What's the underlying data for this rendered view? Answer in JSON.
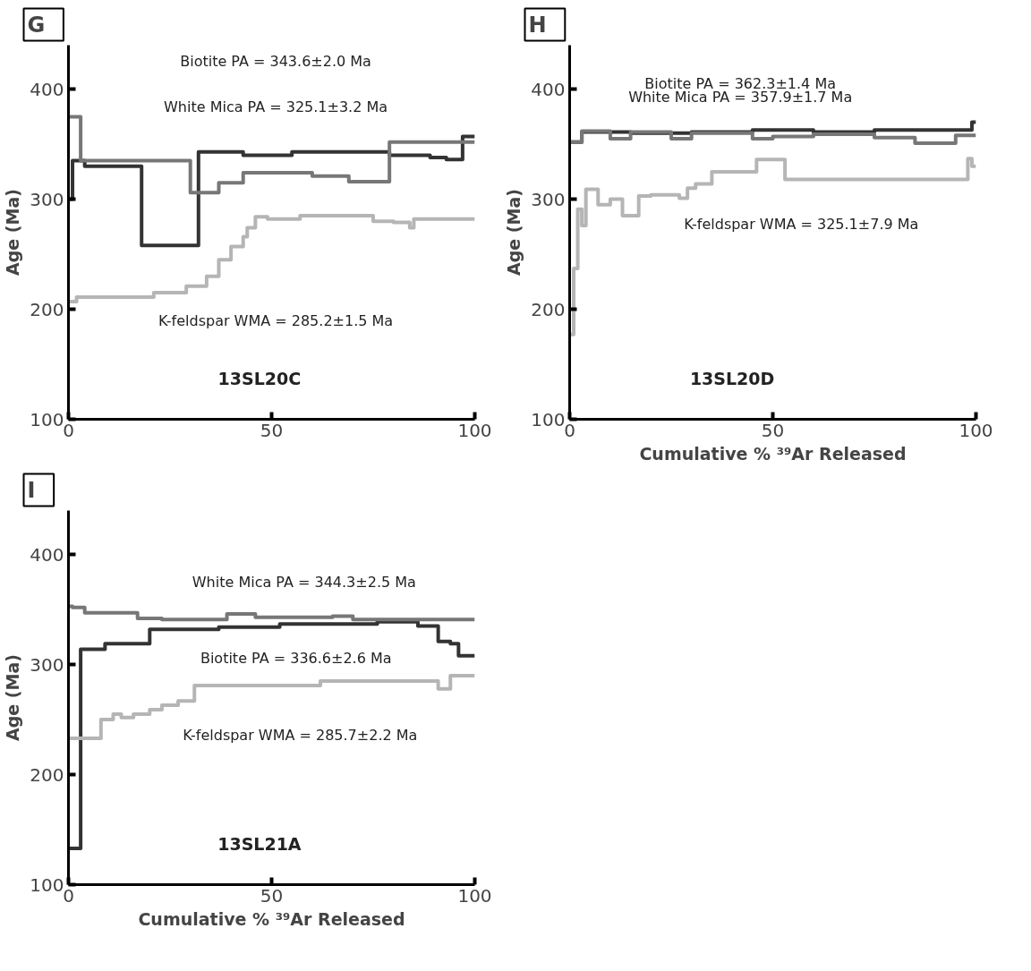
{
  "chart_data": [
    {
      "type": "step",
      "title": "G",
      "ylabel": "Age (Ma)",
      "xlim": [
        0,
        100
      ],
      "xticks": [
        0,
        50,
        100
      ],
      "ylim": [
        100,
        440
      ],
      "yticks": [
        100,
        200,
        300,
        400
      ],
      "grid": false,
      "annotations": [
        "13SL20C",
        "Biotite PA = 343.6±2.0 Ma",
        "White Mica PA = 325.1±3.2 Ma",
        "K-feldspar WMA = 285.2±1.5 Ma"
      ],
      "series": [
        {
          "color": "#333333",
          "x": [
            0,
            1,
            4,
            18,
            32,
            43,
            55,
            71,
            79,
            89,
            93,
            97,
            100
          ],
          "values": [
            300,
            335,
            330,
            258,
            343,
            340,
            343,
            343,
            340,
            338,
            336,
            357,
            357
          ]
        },
        {
          "color": "#777777",
          "x": [
            0,
            3,
            30,
            32,
            37,
            43,
            60,
            69,
            79,
            100
          ],
          "values": [
            375,
            335,
            306,
            306,
            315,
            324,
            321,
            316,
            352,
            352
          ]
        },
        {
          "color": "#b5b5b5",
          "x": [
            0,
            2,
            21,
            29,
            34,
            37,
            40,
            43,
            44,
            46,
            49,
            57,
            75,
            80,
            84,
            85,
            100
          ],
          "values": [
            207,
            211,
            215,
            221,
            230,
            245,
            257,
            266,
            274,
            284,
            282,
            285,
            280,
            279,
            274,
            282,
            282
          ]
        }
      ]
    },
    {
      "type": "step",
      "title": "H",
      "xlabel": "Cumulative % ³⁹Ar Released",
      "ylabel": "Age (Ma)",
      "xlim": [
        0,
        100
      ],
      "xticks": [
        0,
        50,
        100
      ],
      "ylim": [
        100,
        440
      ],
      "yticks": [
        100,
        200,
        300,
        400
      ],
      "grid": false,
      "annotations": [
        "13SL20D",
        "Biotite PA = 362.3±1.4 Ma",
        "White Mica PA = 357.9±1.7 Ma",
        "K-feldspar WMA = 325.1±7.9 Ma"
      ],
      "series": [
        {
          "color": "#333333",
          "x": [
            0,
            3,
            15,
            30,
            45,
            60,
            75,
            95,
            99,
            100
          ],
          "values": [
            352,
            361,
            360,
            361,
            363,
            361,
            363,
            363,
            370,
            370
          ]
        },
        {
          "color": "#777777",
          "x": [
            0,
            3,
            10,
            15,
            25,
            30,
            45,
            50,
            60,
            75,
            85,
            95,
            100
          ],
          "values": [
            352,
            362,
            355,
            361,
            355,
            360,
            355,
            357,
            359,
            356,
            351,
            358,
            358
          ]
        },
        {
          "color": "#b5b5b5",
          "x": [
            0,
            1,
            2,
            3,
            4,
            7,
            10,
            13,
            17,
            20,
            27,
            29,
            31,
            35,
            46,
            53,
            98,
            99,
            100
          ],
          "values": [
            177,
            237,
            291,
            276,
            309,
            295,
            300,
            285,
            303,
            304,
            301,
            310,
            314,
            325,
            336,
            318,
            337,
            330,
            330
          ]
        }
      ]
    },
    {
      "type": "step",
      "title": "I",
      "xlabel": "Cumulative % ³⁹Ar Released",
      "ylabel": "Age (Ma)",
      "xlim": [
        0,
        100
      ],
      "xticks": [
        0,
        50,
        100
      ],
      "ylim": [
        100,
        440
      ],
      "yticks": [
        100,
        200,
        300,
        400
      ],
      "grid": false,
      "annotations": [
        "13SL21A",
        "White Mica PA = 344.3±2.5 Ma",
        "Biotite PA = 336.6±2.6 Ma",
        "K-feldspar WMA = 285.7±2.2 Ma"
      ],
      "series": [
        {
          "color": "#333333",
          "x": [
            0,
            3,
            9,
            20,
            37,
            52,
            76,
            86,
            91,
            94,
            96,
            100
          ],
          "values": [
            133,
            314,
            319,
            332,
            334,
            337,
            339,
            335,
            321,
            319,
            308,
            308
          ]
        },
        {
          "color": "#777777",
          "x": [
            0,
            1,
            4,
            17,
            23,
            39,
            46,
            65,
            70,
            100
          ],
          "values": [
            353,
            352,
            347,
            342,
            341,
            346,
            343,
            344,
            341,
            341
          ]
        },
        {
          "color": "#b5b5b5",
          "x": [
            0,
            8,
            11,
            13,
            16,
            20,
            23,
            27,
            31,
            62,
            91,
            94,
            100
          ],
          "values": [
            233,
            250,
            255,
            252,
            255,
            259,
            263,
            267,
            281,
            285,
            278,
            290,
            290
          ]
        }
      ]
    }
  ]
}
